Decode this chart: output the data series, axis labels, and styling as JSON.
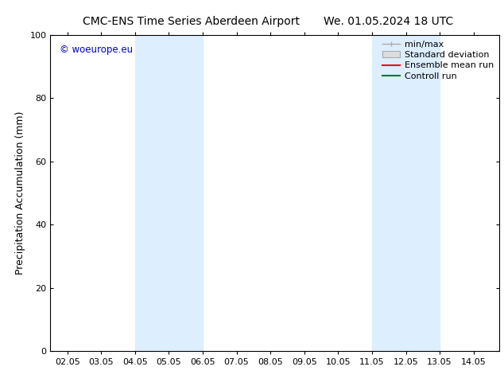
{
  "title_left": "CMC-ENS Time Series Aberdeen Airport",
  "title_right": "We. 01.05.2024 18 UTC",
  "ylabel": "Precipitation Accumulation (mm)",
  "xlim": [
    1.5,
    14.75
  ],
  "ylim": [
    0,
    100
  ],
  "yticks": [
    0,
    20,
    40,
    60,
    80,
    100
  ],
  "xtick_labels": [
    "02.05",
    "03.05",
    "04.05",
    "05.05",
    "06.05",
    "07.05",
    "08.05",
    "09.05",
    "10.05",
    "11.05",
    "12.05",
    "13.05",
    "14.05"
  ],
  "xtick_positions": [
    2.0,
    3.0,
    4.0,
    5.0,
    6.0,
    7.0,
    8.0,
    9.0,
    10.0,
    11.0,
    12.0,
    13.0,
    14.0
  ],
  "shaded_bands": [
    {
      "x_start": 4.0,
      "x_end": 6.0
    },
    {
      "x_start": 11.0,
      "x_end": 13.0
    }
  ],
  "shade_color": "#ddeeff",
  "watermark_text": "© woeurope.eu",
  "watermark_color": "#0000cc",
  "legend_items": [
    {
      "label": "min/max",
      "style": "errorbar"
    },
    {
      "label": "Standard deviation",
      "style": "box"
    },
    {
      "label": "Ensemble mean run",
      "color": "red",
      "style": "line"
    },
    {
      "label": "Controll run",
      "color": "green",
      "style": "line"
    }
  ],
  "background_color": "#ffffff",
  "title_fontsize": 10,
  "axis_fontsize": 9,
  "tick_fontsize": 8,
  "legend_fontsize": 8
}
